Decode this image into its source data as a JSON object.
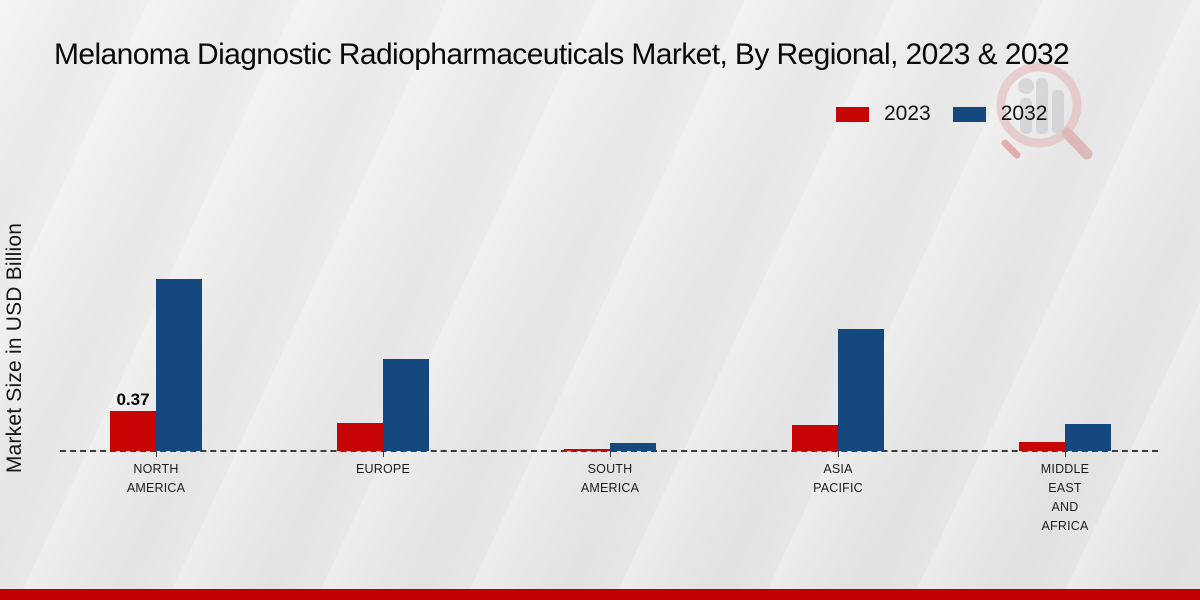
{
  "title": "Melanoma Diagnostic Radiopharmaceuticals Market, By Regional, 2023 & 2032",
  "ylabel": "Market Size in USD Billion",
  "legend": {
    "items": [
      {
        "label": "2023",
        "color": "#c80505"
      },
      {
        "label": "2032",
        "color": "#14487e"
      }
    ]
  },
  "watermark_icon": "magnifier-bar-chart-logo",
  "colors": {
    "series_2023": "#c80505",
    "series_2032": "#14487e",
    "bottom_strip": "#c00000",
    "baseline": "#3c3c3c",
    "background": "#e9e9e9"
  },
  "chart_data": {
    "type": "bar",
    "title": "Melanoma Diagnostic Radiopharmaceuticals Market, By Regional, 2023 & 2032",
    "xlabel": "",
    "ylabel": "Market Size in USD Billion",
    "categories": [
      "NORTH AMERICA",
      "EUROPE",
      "SOUTH AMERICA",
      "ASIA PACIFIC",
      "MIDDLE EAST AND AFRICA"
    ],
    "categories_lines": [
      [
        "NORTH",
        "AMERICA"
      ],
      [
        "EUROPE"
      ],
      [
        "SOUTH",
        "AMERICA"
      ],
      [
        "ASIA",
        "PACIFIC"
      ],
      [
        "MIDDLE",
        "EAST",
        "AND",
        "AFRICA"
      ]
    ],
    "series": [
      {
        "name": "2023",
        "color": "#c80505",
        "values": [
          0.37,
          0.26,
          0.02,
          0.24,
          0.08
        ]
      },
      {
        "name": "2032",
        "color": "#14487e",
        "values": [
          1.59,
          0.85,
          0.07,
          1.13,
          0.25
        ]
      }
    ],
    "data_labels": [
      {
        "series": "2023",
        "category_index": 0,
        "text": "0.37"
      }
    ],
    "ylim": [
      0,
      1.8
    ],
    "grid": false,
    "axis_line": "dashed-baseline",
    "legend_position": "top-right"
  }
}
